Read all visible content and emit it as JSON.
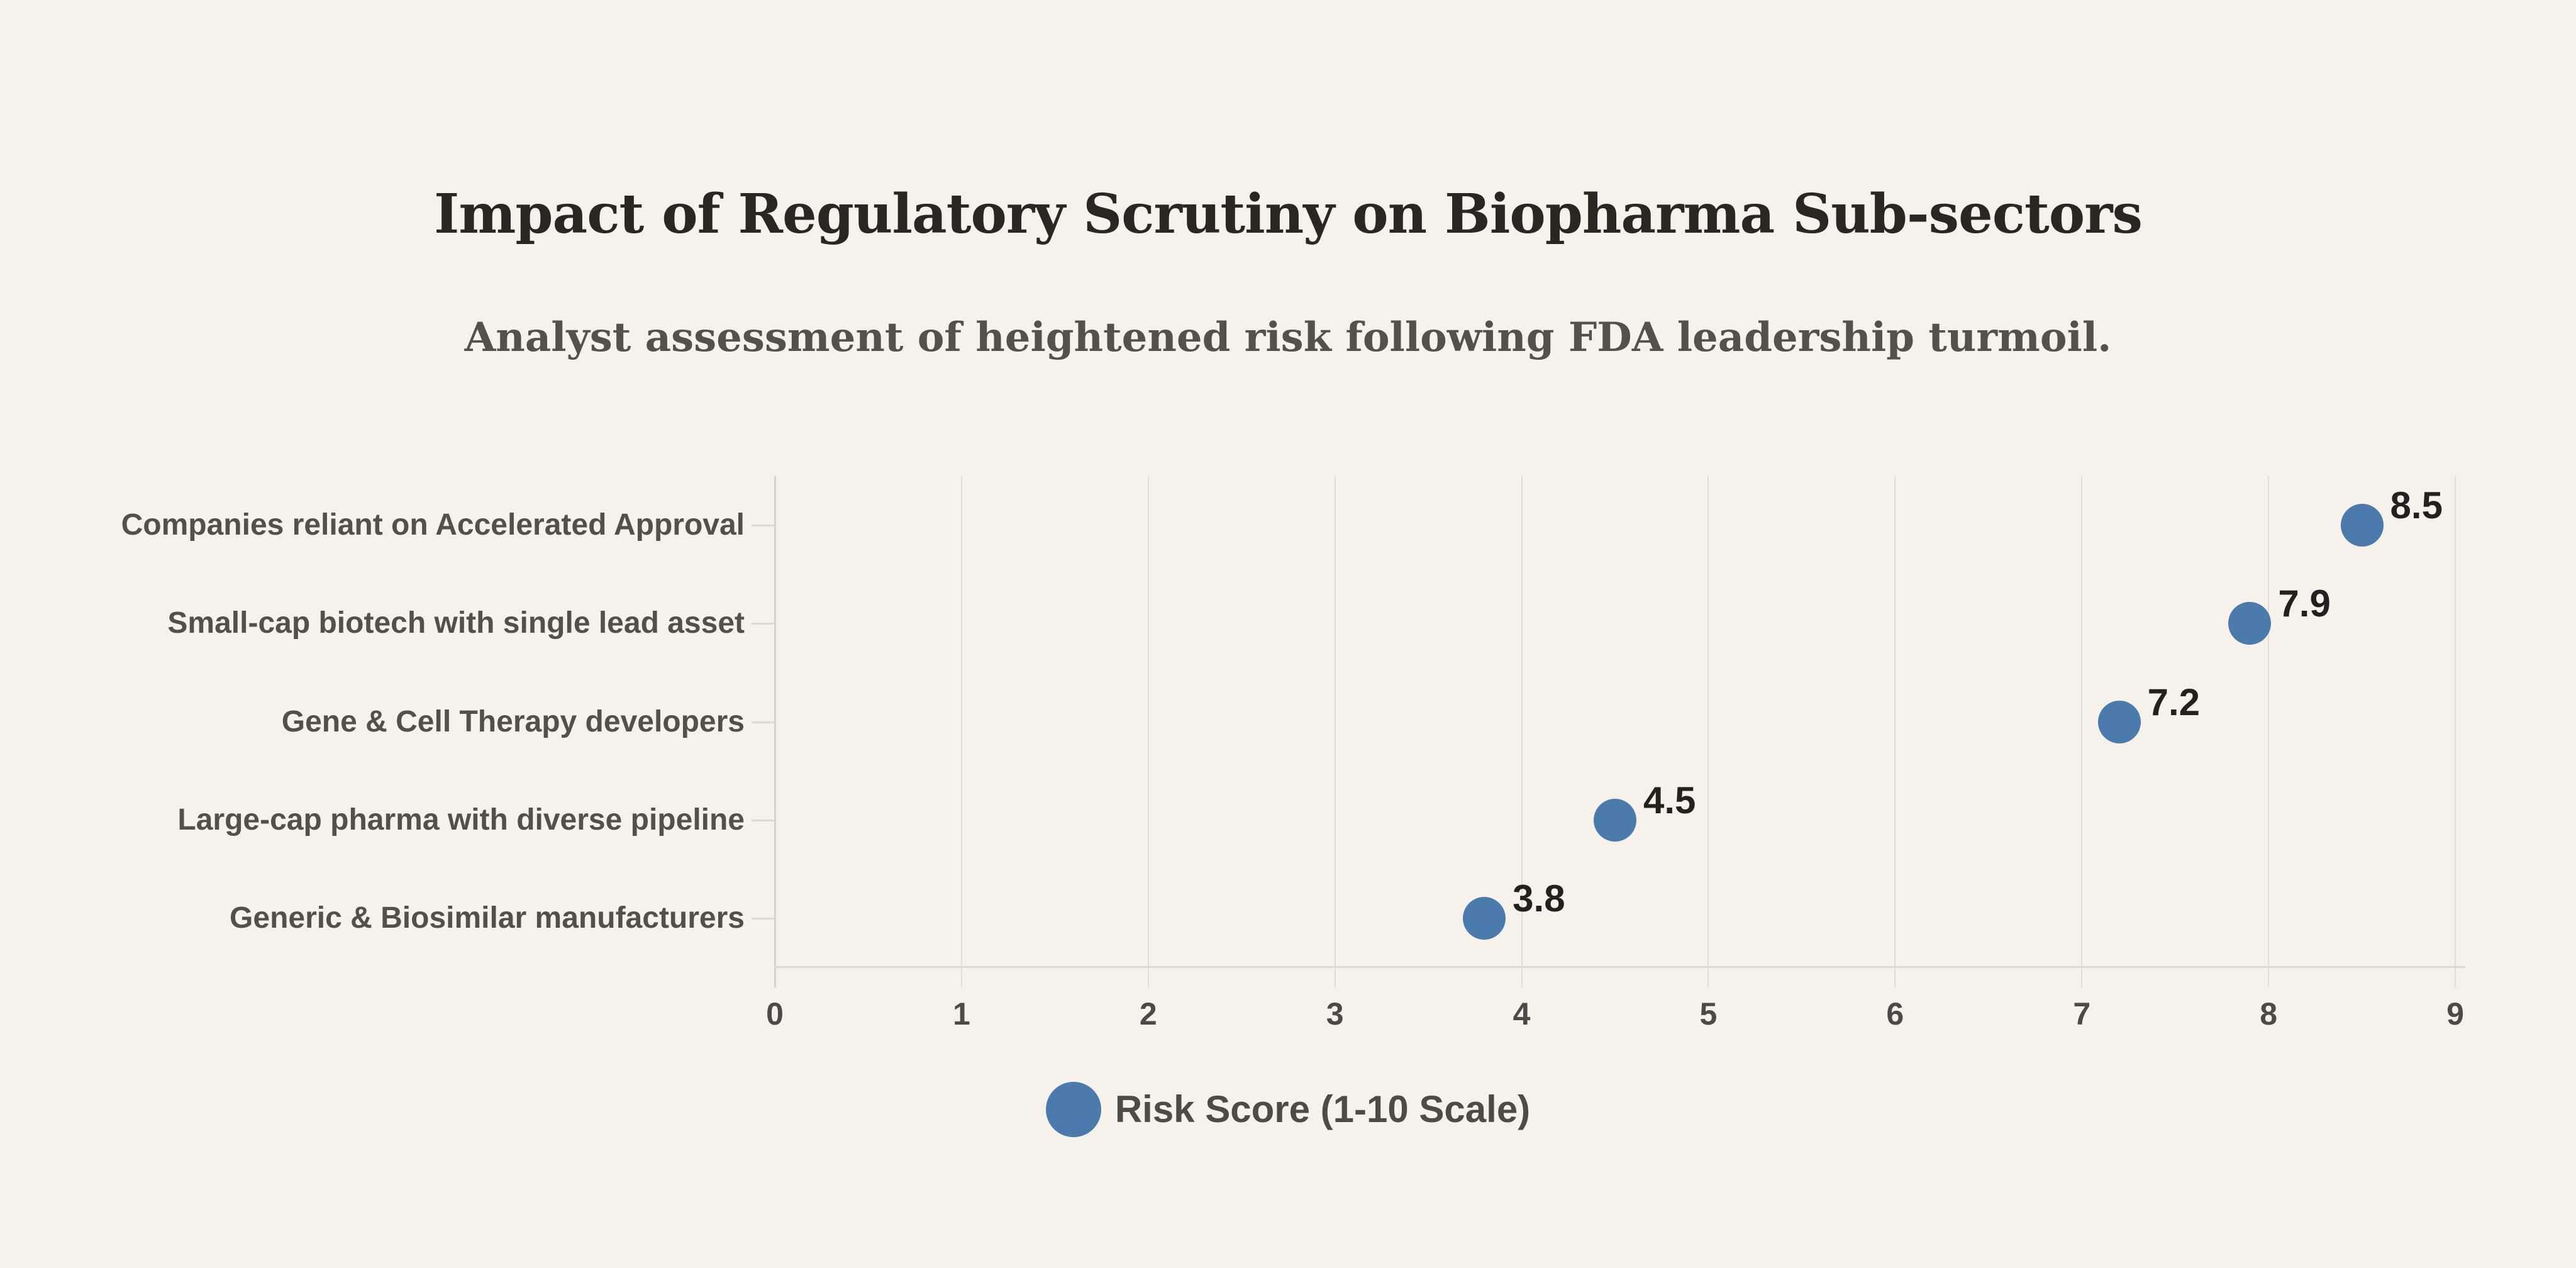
{
  "chart_data": {
    "type": "scatter",
    "variant": "horizontal-dot-plot",
    "title": "Impact of Regulatory Scrutiny on Biopharma Sub-sectors",
    "subtitle": "Analyst assessment of heightened risk following FDA leadership turmoil.",
    "categories": [
      "Companies reliant on Accelerated Approval",
      "Small-cap biotech with single lead asset",
      "Gene & Cell Therapy developers",
      "Large-cap pharma with diverse pipeline",
      "Generic & Biosimilar manufacturers"
    ],
    "values": [
      8.5,
      7.9,
      7.2,
      4.5,
      3.8
    ],
    "xlabel": "",
    "ylabel": "",
    "xlim": [
      0,
      9
    ],
    "x_ticks": [
      "0",
      "1",
      "2",
      "3",
      "4",
      "5",
      "6",
      "7",
      "8",
      "9"
    ],
    "grid": "vertical-only",
    "legend": {
      "label": "Risk Score (1-10 Scale)",
      "position": "bottom-center"
    },
    "colors": {
      "background": "#F6F2EB",
      "dot": "#4B7AAC",
      "title": "#2A2623",
      "subtitle": "#55504B",
      "category_label": "#534F4B",
      "tick_label": "#4B4A48",
      "value_label": "#232120",
      "gridline": "#E0DDD7",
      "axis_line": "#D5D2CC"
    }
  }
}
